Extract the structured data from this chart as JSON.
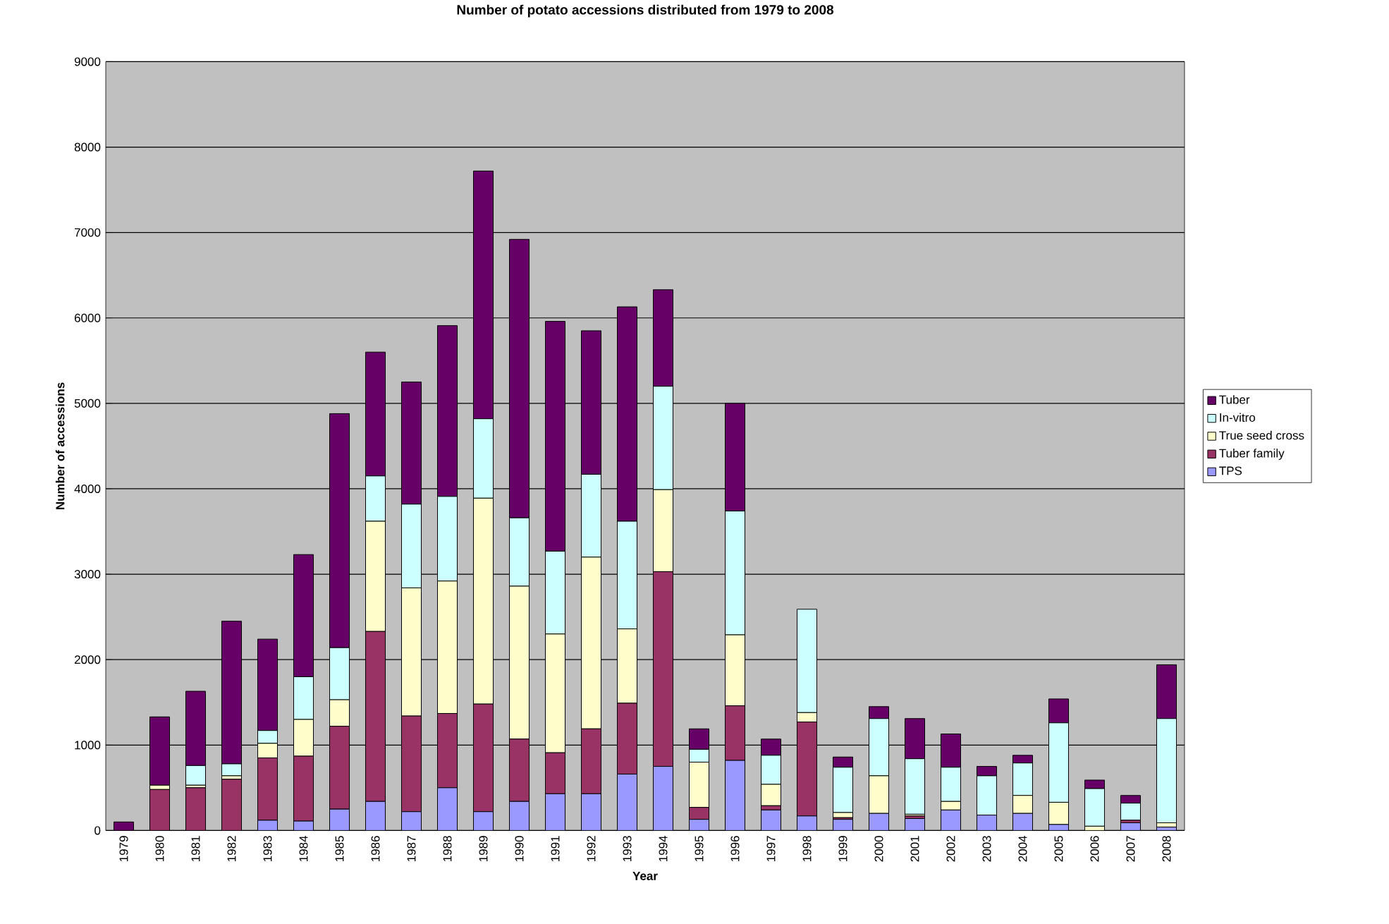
{
  "chart_data": {
    "type": "bar",
    "title": "Number of potato accessions distributed from 1979 to 2008",
    "xlabel": "Year",
    "ylabel": "Number of accessions",
    "categories": [
      "1979",
      "1980",
      "1981",
      "1982",
      "1983",
      "1984",
      "1985",
      "1986",
      "1987",
      "1988",
      "1989",
      "1990",
      "1991",
      "1992",
      "1993",
      "1994",
      "1995",
      "1996",
      "1997",
      "1998",
      "1999",
      "2000",
      "2001",
      "2002",
      "2003",
      "2004",
      "2005",
      "2006",
      "2007",
      "2008"
    ],
    "stacked": true,
    "ylim": [
      0,
      9000
    ],
    "yticks": [
      0,
      1000,
      2000,
      3000,
      4000,
      5000,
      6000,
      7000,
      8000,
      9000
    ],
    "grid": "y",
    "legend": "right",
    "series": [
      {
        "name": "TPS",
        "color": "#9999ff",
        "values": [
          0,
          0,
          null,
          null,
          120,
          110,
          250,
          340,
          220,
          500,
          220,
          340,
          430,
          430,
          660,
          750,
          130,
          820,
          240,
          170,
          130,
          200,
          140,
          240,
          180,
          200,
          70,
          null,
          90,
          40
        ]
      },
      {
        "name": "Tuber family",
        "color": "#993366",
        "values": [
          0,
          480,
          500,
          600,
          730,
          760,
          970,
          1990,
          1120,
          870,
          1260,
          730,
          480,
          760,
          830,
          2280,
          140,
          640,
          50,
          1100,
          20,
          0,
          30,
          0,
          0,
          0,
          0,
          0,
          30,
          0
        ]
      },
      {
        "name": "True seed cross",
        "color": "#ffffcc",
        "values": [
          0,
          50,
          30,
          40,
          170,
          430,
          310,
          1290,
          1500,
          1550,
          2410,
          1790,
          1390,
          2010,
          870,
          960,
          530,
          830,
          250,
          110,
          60,
          440,
          20,
          100,
          0,
          210,
          260,
          50,
          0,
          50
        ]
      },
      {
        "name": "In-vitro",
        "color": "#ccffff",
        "values": [
          0,
          null,
          230,
          140,
          150,
          500,
          610,
          530,
          980,
          990,
          930,
          800,
          970,
          970,
          1260,
          1210,
          150,
          1450,
          340,
          1210,
          530,
          670,
          650,
          400,
          460,
          380,
          930,
          440,
          200,
          1220
        ]
      },
      {
        "name": "Tuber",
        "color": "#660066",
        "values": [
          100,
          800,
          870,
          1670,
          1070,
          1430,
          2740,
          1450,
          1430,
          2000,
          2900,
          3260,
          2690,
          1680,
          2510,
          1130,
          240,
          1260,
          190,
          0,
          120,
          140,
          470,
          390,
          110,
          90,
          280,
          100,
          90,
          630
        ]
      }
    ]
  }
}
